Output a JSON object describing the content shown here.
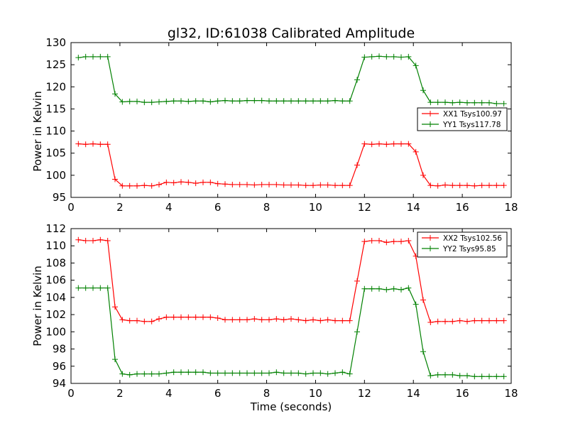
{
  "title": "gl32, ID:61038 Calibrated Amplitude",
  "chart_data": [
    {
      "type": "line",
      "ylabel": "Power in Kelvin",
      "xlabel": "",
      "xlim": [
        0,
        18
      ],
      "ylim": [
        95,
        130
      ],
      "xticks": [
        0,
        2,
        4,
        6,
        8,
        10,
        12,
        14,
        16,
        18
      ],
      "yticks": [
        95,
        100,
        105,
        110,
        115,
        120,
        125,
        130
      ],
      "grid": false,
      "legend_position": "right",
      "x": [
        0.3,
        0.6,
        0.9,
        1.2,
        1.5,
        1.8,
        2.1,
        2.4,
        2.7,
        3.0,
        3.3,
        3.6,
        3.9,
        4.2,
        4.5,
        4.8,
        5.1,
        5.4,
        5.7,
        6.0,
        6.3,
        6.6,
        6.9,
        7.2,
        7.5,
        7.8,
        8.1,
        8.4,
        8.7,
        9.0,
        9.3,
        9.6,
        9.9,
        10.2,
        10.5,
        10.8,
        11.1,
        11.4,
        11.7,
        12.0,
        12.3,
        12.6,
        12.9,
        13.2,
        13.5,
        13.8,
        14.1,
        14.4,
        14.7,
        15.0,
        15.3,
        15.6,
        15.9,
        16.2,
        16.5,
        16.8,
        17.1,
        17.4,
        17.7
      ],
      "series": [
        {
          "name": "XX1 Tsys100.97",
          "color": "#ff0000",
          "values": [
            107.1,
            107.0,
            107.1,
            107.0,
            107.0,
            99.1,
            97.6,
            97.6,
            97.6,
            97.7,
            97.6,
            97.9,
            98.4,
            98.3,
            98.5,
            98.4,
            98.2,
            98.4,
            98.4,
            98.1,
            98.0,
            97.9,
            97.9,
            97.9,
            97.8,
            97.9,
            97.9,
            97.9,
            97.8,
            97.8,
            97.8,
            97.7,
            97.7,
            97.8,
            97.8,
            97.7,
            97.7,
            97.7,
            102.3,
            107.1,
            107.0,
            107.1,
            107.0,
            107.1,
            107.1,
            107.1,
            105.3,
            100.0,
            97.7,
            97.6,
            97.8,
            97.7,
            97.7,
            97.7,
            97.6,
            97.7,
            97.7,
            97.7,
            97.7
          ]
        },
        {
          "name": "YY1 Tsys117.78",
          "color": "#008000",
          "values": [
            126.6,
            126.8,
            126.8,
            126.8,
            126.8,
            118.4,
            116.6,
            116.7,
            116.7,
            116.5,
            116.5,
            116.6,
            116.7,
            116.8,
            116.8,
            116.7,
            116.8,
            116.8,
            116.6,
            116.8,
            116.9,
            116.8,
            116.8,
            116.9,
            116.9,
            116.9,
            116.8,
            116.8,
            116.8,
            116.8,
            116.8,
            116.8,
            116.8,
            116.8,
            116.8,
            116.9,
            116.8,
            116.8,
            121.6,
            126.7,
            126.8,
            126.9,
            126.8,
            126.8,
            126.7,
            126.8,
            124.8,
            119.2,
            116.5,
            116.5,
            116.5,
            116.4,
            116.5,
            116.4,
            116.4,
            116.4,
            116.4,
            116.2,
            116.2
          ]
        }
      ]
    },
    {
      "type": "line",
      "ylabel": "Power in Kelvin",
      "xlabel": "Time (seconds)",
      "xlim": [
        0,
        18
      ],
      "ylim": [
        94,
        112
      ],
      "xticks": [
        0,
        2,
        4,
        6,
        8,
        10,
        12,
        14,
        16,
        18
      ],
      "yticks": [
        94,
        96,
        98,
        100,
        102,
        104,
        106,
        108,
        110,
        112
      ],
      "grid": false,
      "legend_position": "top-right",
      "x": [
        0.3,
        0.6,
        0.9,
        1.2,
        1.5,
        1.8,
        2.1,
        2.4,
        2.7,
        3.0,
        3.3,
        3.6,
        3.9,
        4.2,
        4.5,
        4.8,
        5.1,
        5.4,
        5.7,
        6.0,
        6.3,
        6.6,
        6.9,
        7.2,
        7.5,
        7.8,
        8.1,
        8.4,
        8.7,
        9.0,
        9.3,
        9.6,
        9.9,
        10.2,
        10.5,
        10.8,
        11.1,
        11.4,
        11.7,
        12.0,
        12.3,
        12.6,
        12.9,
        13.2,
        13.5,
        13.8,
        14.1,
        14.4,
        14.7,
        15.0,
        15.3,
        15.6,
        15.9,
        16.2,
        16.5,
        16.8,
        17.1,
        17.4,
        17.7
      ],
      "series": [
        {
          "name": "XX2 Tsys102.56",
          "color": "#ff0000",
          "values": [
            110.7,
            110.6,
            110.6,
            110.7,
            110.6,
            102.9,
            101.4,
            101.3,
            101.3,
            101.2,
            101.2,
            101.5,
            101.7,
            101.7,
            101.7,
            101.7,
            101.7,
            101.7,
            101.7,
            101.6,
            101.4,
            101.4,
            101.4,
            101.4,
            101.5,
            101.4,
            101.4,
            101.5,
            101.4,
            101.5,
            101.4,
            101.3,
            101.4,
            101.3,
            101.4,
            101.3,
            101.3,
            101.3,
            105.9,
            110.5,
            110.6,
            110.6,
            110.4,
            110.5,
            110.5,
            110.6,
            108.8,
            103.7,
            101.1,
            101.2,
            101.2,
            101.2,
            101.3,
            101.2,
            101.3,
            101.3,
            101.3,
            101.3,
            101.3
          ]
        },
        {
          "name": "YY2 Tsys95.85",
          "color": "#008000",
          "values": [
            105.1,
            105.1,
            105.1,
            105.1,
            105.1,
            96.8,
            95.1,
            95.0,
            95.1,
            95.1,
            95.1,
            95.1,
            95.2,
            95.3,
            95.3,
            95.3,
            95.3,
            95.3,
            95.2,
            95.2,
            95.2,
            95.2,
            95.2,
            95.2,
            95.2,
            95.2,
            95.2,
            95.3,
            95.2,
            95.2,
            95.2,
            95.1,
            95.2,
            95.2,
            95.1,
            95.2,
            95.3,
            95.1,
            100.0,
            105.0,
            105.0,
            105.0,
            104.9,
            105.0,
            104.9,
            105.1,
            103.2,
            97.7,
            94.9,
            95.0,
            95.0,
            95.0,
            94.9,
            94.9,
            94.8,
            94.8,
            94.8,
            94.8,
            94.8
          ]
        }
      ]
    }
  ]
}
